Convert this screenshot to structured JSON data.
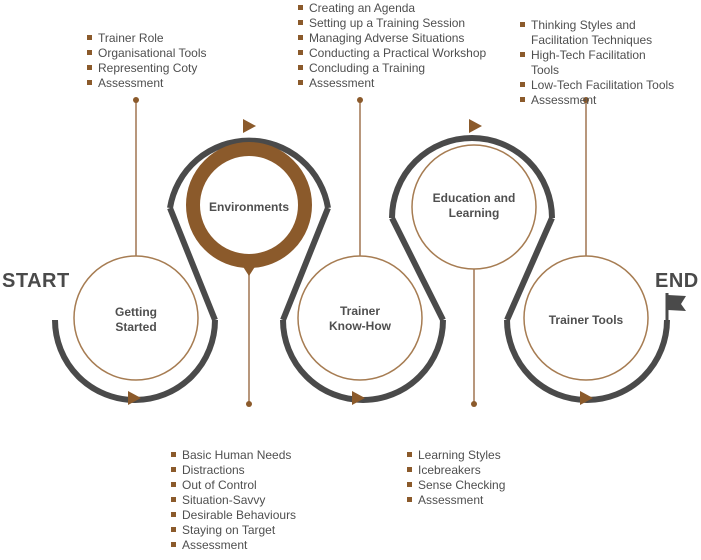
{
  "start_label": "START",
  "end_label": "END",
  "colors": {
    "accent": "#8b5a2b",
    "track": "#4a4a4a",
    "stem": "#a07550",
    "text": "#4f4f4f",
    "circle_outline": "#a67c52"
  },
  "stages": [
    {
      "id": "getting-started",
      "title": [
        "Getting",
        "Started"
      ]
    },
    {
      "id": "environments",
      "title": [
        "Environments"
      ]
    },
    {
      "id": "trainer-know-how",
      "title": [
        "Trainer",
        "Know-How"
      ]
    },
    {
      "id": "education-and-learning",
      "title": [
        "Education and",
        "Learning"
      ]
    },
    {
      "id": "trainer-tools",
      "title": [
        "Trainer Tools"
      ]
    }
  ],
  "lists": {
    "getting_started": [
      "Trainer Role",
      "Organisational Tools",
      "Representing Coty",
      "Assessment"
    ],
    "environments": [
      "Basic Human Needs",
      "Distractions",
      "Out of Control",
      "Situation-Savvy",
      "Desirable Behaviours",
      "Staying on Target",
      "Assessment"
    ],
    "trainer_know_how": [
      "Creating an Agenda",
      "Setting up a Training Session",
      "Managing Adverse Situations",
      "Conducting a Practical Workshop",
      "Concluding a Training",
      "Assessment"
    ],
    "education_and_learning": [
      "Learning Styles",
      "Icebreakers",
      "Sense Checking",
      "Assessment"
    ],
    "trainer_tools": [
      "Thinking Styles and Facilitation Techniques",
      "High-Tech Facilitation Tools",
      "Low-Tech Facilitation Tools",
      "Assessment"
    ]
  },
  "icons": {
    "direction": "play-triangle-icon",
    "finish": "flag-icon"
  }
}
